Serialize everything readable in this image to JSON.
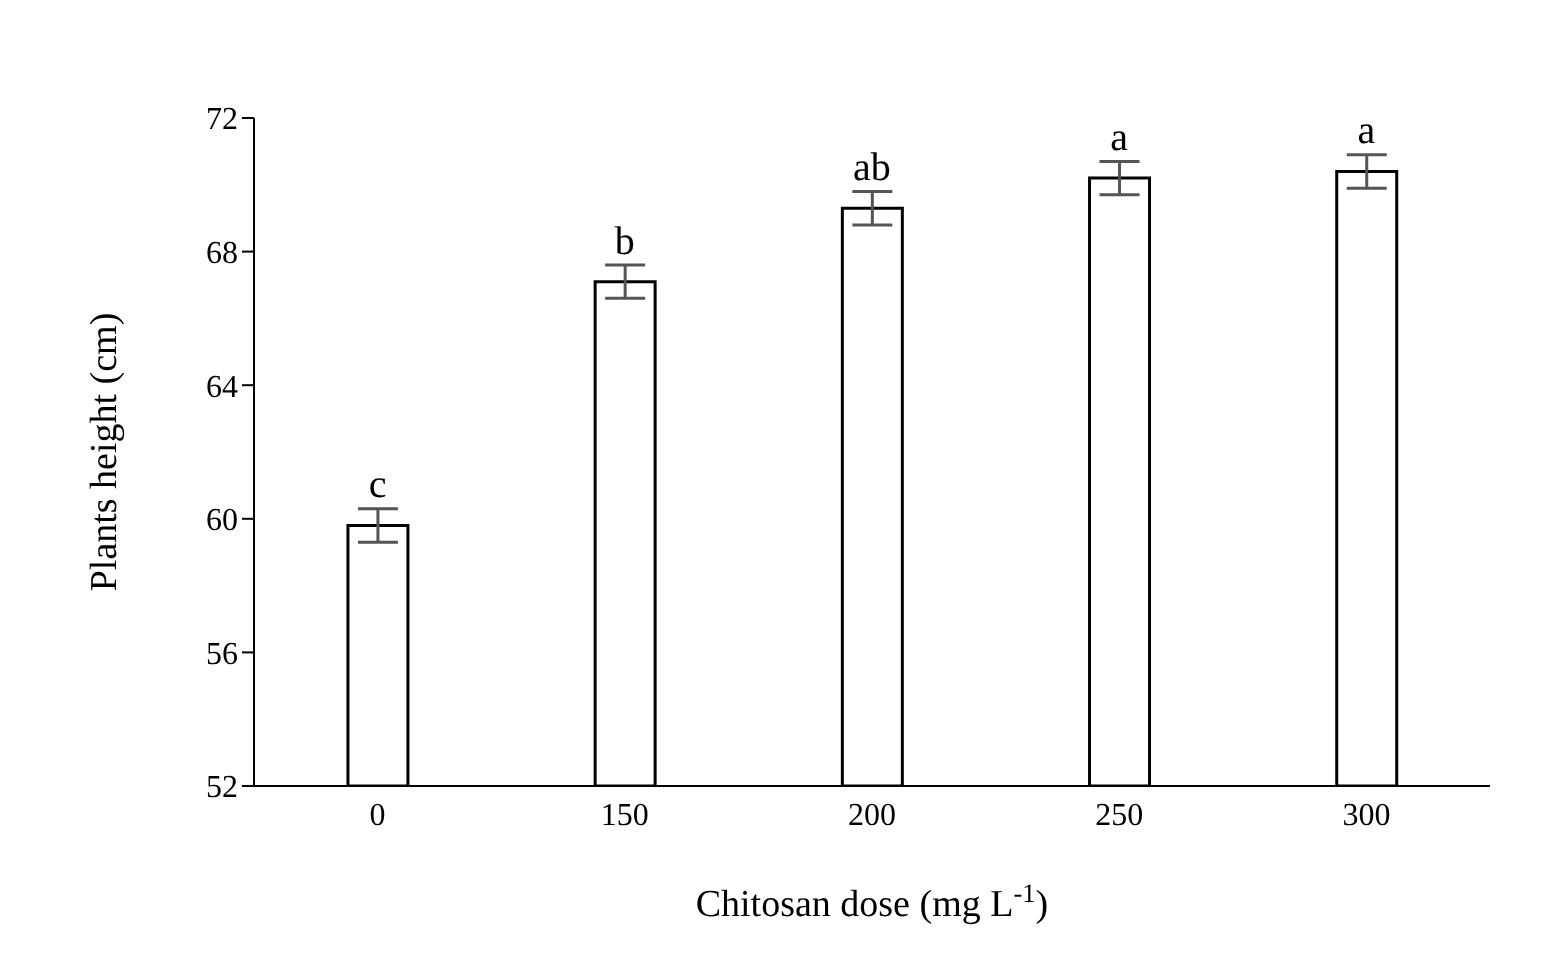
{
  "chart_data": {
    "type": "bar",
    "xlabel": "Chitosan dose (mg L$^{-1}$)",
    "ylabel": "Plants height (cm)",
    "categories": [
      "0",
      "150",
      "200",
      "250",
      "300"
    ],
    "values": [
      59.8,
      67.1,
      69.3,
      70.2,
      70.4
    ],
    "errors": [
      0.5,
      0.5,
      0.5,
      0.5,
      0.5
    ],
    "color": "#ffffff",
    "ylim": [
      52,
      72
    ],
    "yticks": [
      52,
      56,
      60,
      64,
      68,
      72
    ],
    "grid": false,
    "annotations": [
      {
        "text": "c",
        "x": "0",
        "y": 59.8
      },
      {
        "text": "b",
        "x": "150",
        "y": 67.1
      },
      {
        "text": "ab",
        "x": "200",
        "y": 69.3
      },
      {
        "text": "a",
        "x": "250",
        "y": 70.2
      },
      {
        "text": "a",
        "x": "300",
        "y": 70.4
      }
    ]
  }
}
